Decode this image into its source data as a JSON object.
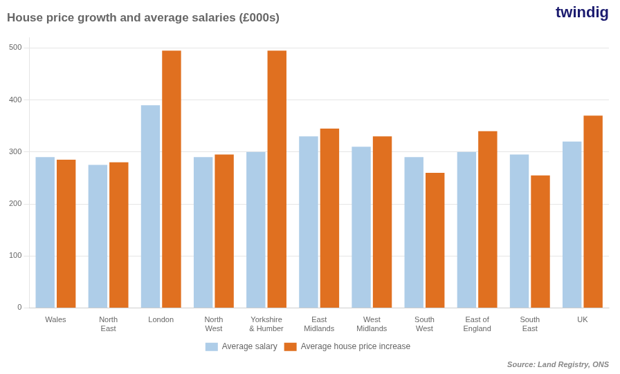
{
  "chart_data": {
    "type": "bar",
    "title": "House price growth and average salaries (£000s)",
    "categories": [
      "Wales",
      "North\nEast",
      "London",
      "North\nWest",
      "Yorkshire\n& Humber",
      "East\nMidlands",
      "West\nMidlands",
      "South\nWest",
      "East of\nEngland",
      "South\nEast",
      "UK"
    ],
    "series": [
      {
        "name": "Average salary",
        "color": "#aecde8",
        "values": [
          290,
          275,
          390,
          290,
          300,
          330,
          310,
          290,
          300,
          295,
          320
        ]
      },
      {
        "name": "Average house price increase",
        "color": "#e07020",
        "values": [
          285,
          280,
          495,
          295,
          495,
          345,
          330,
          260,
          340,
          255,
          370
        ]
      }
    ],
    "ylim": [
      0,
      520
    ],
    "yticks": [
      0,
      100,
      200,
      300,
      400,
      500
    ],
    "grid": true,
    "legend": "bottom",
    "annotations": [
      "Source: Land Registry, ONS",
      "twindig"
    ]
  }
}
